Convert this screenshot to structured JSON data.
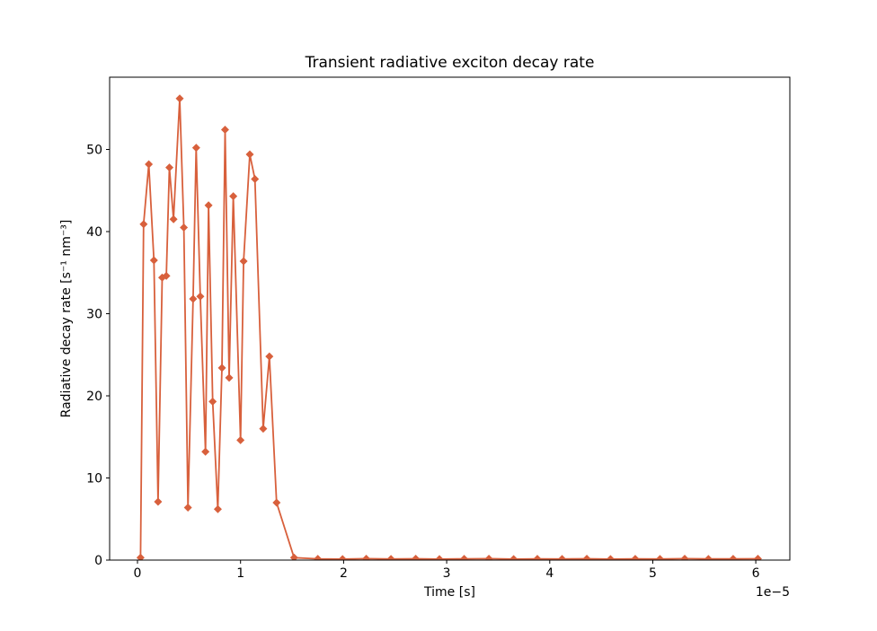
{
  "figure": {
    "title": "Transient radiative exciton decay rate",
    "xlabel": "Time [s]",
    "ylabel": "Radiative decay rate [s⁻¹ nm⁻³]",
    "x_offset_text": "1e−5"
  },
  "chart_data": {
    "type": "line",
    "title": "Transient radiative exciton decay rate",
    "xlabel": "Time [s]",
    "ylabel": "Radiative decay rate [s^-1 nm^-3]",
    "x_unit_multiplier": "1e-5 s (x values below are in units of 1e-5 s)",
    "line_color": "#d8603c",
    "marker": "diamond",
    "grid": false,
    "legend": "none",
    "xlim": [
      -0.27,
      6.33
    ],
    "ylim": [
      0,
      58.8
    ],
    "x_ticks": [
      0,
      1,
      2,
      3,
      4,
      5,
      6
    ],
    "y_ticks": [
      0,
      10,
      20,
      30,
      40,
      50
    ],
    "points": [
      [
        0.03,
        0.3
      ],
      [
        0.06,
        40.9
      ],
      [
        0.11,
        48.2
      ],
      [
        0.16,
        36.5
      ],
      [
        0.2,
        7.1
      ],
      [
        0.24,
        34.4
      ],
      [
        0.28,
        34.6
      ],
      [
        0.31,
        47.8
      ],
      [
        0.35,
        41.5
      ],
      [
        0.41,
        56.2
      ],
      [
        0.45,
        40.5
      ],
      [
        0.49,
        6.4
      ],
      [
        0.54,
        31.8
      ],
      [
        0.57,
        50.2
      ],
      [
        0.61,
        32.1
      ],
      [
        0.66,
        13.2
      ],
      [
        0.69,
        43.2
      ],
      [
        0.73,
        19.3
      ],
      [
        0.78,
        6.2
      ],
      [
        0.82,
        23.4
      ],
      [
        0.85,
        52.4
      ],
      [
        0.89,
        22.2
      ],
      [
        0.93,
        44.3
      ],
      [
        1.0,
        14.6
      ],
      [
        1.03,
        36.4
      ],
      [
        1.09,
        49.4
      ],
      [
        1.14,
        46.4
      ],
      [
        1.22,
        16.0
      ],
      [
        1.28,
        24.8
      ],
      [
        1.35,
        7.0
      ],
      [
        1.52,
        0.3
      ],
      [
        1.75,
        0.15
      ],
      [
        1.99,
        0.12
      ],
      [
        2.22,
        0.17
      ],
      [
        2.46,
        0.13
      ],
      [
        2.7,
        0.16
      ],
      [
        2.93,
        0.12
      ],
      [
        3.17,
        0.15
      ],
      [
        3.41,
        0.17
      ],
      [
        3.65,
        0.12
      ],
      [
        3.88,
        0.15
      ],
      [
        4.12,
        0.13
      ],
      [
        4.36,
        0.16
      ],
      [
        4.59,
        0.12
      ],
      [
        4.83,
        0.15
      ],
      [
        5.07,
        0.13
      ],
      [
        5.31,
        0.17
      ],
      [
        5.54,
        0.14
      ],
      [
        5.78,
        0.15
      ],
      [
        6.02,
        0.16
      ]
    ]
  }
}
